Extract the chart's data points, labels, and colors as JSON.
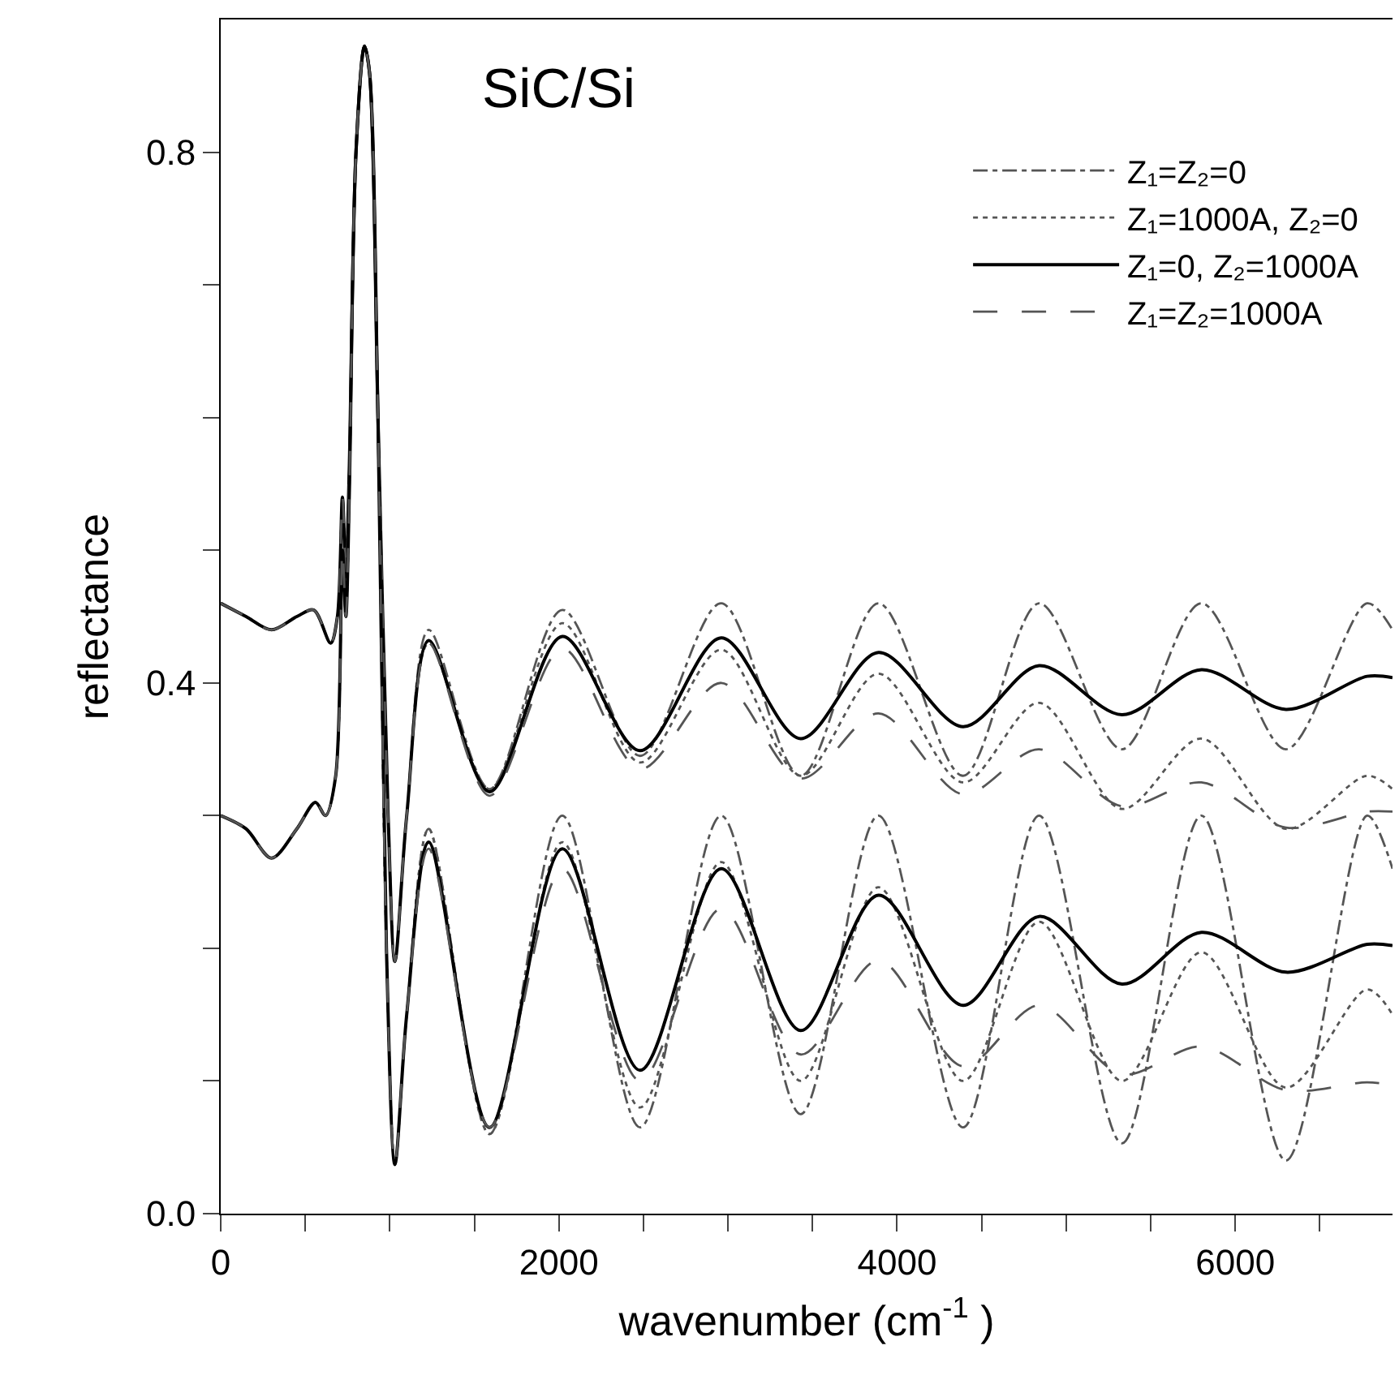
{
  "chart_data": {
    "type": "line",
    "xlabel": "wavenumber (cm$^{-1}$ )",
    "ylabel": "reflectance",
    "annotations": [
      "SiC/Si"
    ],
    "xlim": [
      0,
      6930
    ],
    "xticks": [
      0,
      {
        "value": 500,
        "label": null
      },
      {
        "value": 1000,
        "label": null
      },
      {
        "value": 1500,
        "label": null
      },
      2000,
      {
        "value": 2500,
        "label": null
      },
      {
        "value": 3000,
        "label": null
      },
      {
        "value": 3500,
        "label": null
      },
      4000,
      {
        "value": 4500,
        "label": null
      },
      {
        "value": 5000,
        "label": null
      },
      {
        "value": 5500,
        "label": null
      },
      6000,
      {
        "value": 6500,
        "label": null
      }
    ],
    "ylim": [
      0,
      0.9
    ],
    "yticks": [
      {
        "value": 0,
        "label": "0.0"
      },
      {
        "value": 0.1,
        "label": null
      },
      {
        "value": 0.2,
        "label": null
      },
      {
        "value": 0.3,
        "label": null
      },
      {
        "value": 0.4,
        "label": "0.4"
      },
      {
        "value": 0.5,
        "label": null
      },
      {
        "value": 0.6,
        "label": null
      },
      {
        "value": 0.7,
        "label": null
      },
      {
        "value": 0.8,
        "label": "0.8"
      }
    ],
    "legend": "top right",
    "series": [
      {
        "name": "Z₁=Z₂=0",
        "color": "#555555",
        "line_style": "dashdot",
        "x": [
          0,
          150,
          300,
          450,
          550,
          650,
          690,
          720,
          740,
          760,
          800,
          850,
          880,
          930,
          990,
          1030,
          1100,
          1230,
          1590,
          2020,
          2480,
          2960,
          3430,
          3890,
          4390,
          4840,
          5330,
          5800,
          6300,
          6780,
          6930
        ],
        "values": [
          0.46,
          0.45,
          0.44,
          0.45,
          0.455,
          0.43,
          0.45,
          0.54,
          0.48,
          0.56,
          0.8,
          0.88,
          0.86,
          0.6,
          0.3,
          0.19,
          0.3,
          0.44,
          0.32,
          0.455,
          0.345,
          0.46,
          0.33,
          0.46,
          0.33,
          0.46,
          0.35,
          0.46,
          0.35,
          0.46,
          0.44
        ]
      },
      {
        "name": "Z₁=1000A, Z₂=0",
        "color": "#555555",
        "line_style": "dotted",
        "x": [
          0,
          150,
          300,
          450,
          550,
          650,
          690,
          720,
          740,
          760,
          800,
          850,
          880,
          930,
          990,
          1030,
          1100,
          1230,
          1590,
          2020,
          2480,
          2960,
          3430,
          3890,
          4390,
          4840,
          5330,
          5800,
          6300,
          6780,
          6930
        ],
        "values": [
          0.46,
          0.45,
          0.44,
          0.45,
          0.455,
          0.43,
          0.45,
          0.54,
          0.48,
          0.56,
          0.8,
          0.88,
          0.86,
          0.6,
          0.3,
          0.19,
          0.3,
          0.43,
          0.32,
          0.445,
          0.34,
          0.425,
          0.33,
          0.407,
          0.325,
          0.385,
          0.305,
          0.358,
          0.29,
          0.33,
          0.32
        ]
      },
      {
        "name": "Z₁=0, Z₂=1000A",
        "color": "#000000",
        "line_style": "solid",
        "x": [
          0,
          150,
          300,
          450,
          550,
          650,
          690,
          720,
          740,
          760,
          800,
          850,
          880,
          930,
          990,
          1030,
          1100,
          1230,
          1590,
          2020,
          2480,
          2960,
          3430,
          3890,
          4390,
          4840,
          5330,
          5800,
          6300,
          6780,
          6930
        ],
        "values": [
          0.46,
          0.45,
          0.44,
          0.45,
          0.455,
          0.43,
          0.45,
          0.54,
          0.48,
          0.56,
          0.8,
          0.88,
          0.86,
          0.6,
          0.3,
          0.19,
          0.3,
          0.432,
          0.318,
          0.435,
          0.349,
          0.434,
          0.358,
          0.423,
          0.367,
          0.413,
          0.376,
          0.41,
          0.38,
          0.405,
          0.404
        ]
      },
      {
        "name": "Z₁=Z₂=1000A",
        "color": "#555555",
        "line_style": "dashed",
        "x": [
          0,
          150,
          300,
          450,
          550,
          650,
          690,
          720,
          740,
          760,
          800,
          850,
          880,
          930,
          990,
          1030,
          1100,
          1230,
          1590,
          2020,
          2480,
          2960,
          3430,
          3890,
          4390,
          4840,
          5330,
          5800,
          6300,
          6780,
          6930
        ],
        "values": [
          0.46,
          0.45,
          0.44,
          0.45,
          0.455,
          0.43,
          0.45,
          0.54,
          0.48,
          0.56,
          0.8,
          0.88,
          0.86,
          0.6,
          0.3,
          0.19,
          0.3,
          0.43,
          0.315,
          0.426,
          0.335,
          0.4,
          0.328,
          0.377,
          0.316,
          0.35,
          0.307,
          0.325,
          0.291,
          0.303,
          0.303
        ]
      },
      {
        "color": "#555555",
        "line_style": "dashdot",
        "x": [
          0,
          150,
          300,
          450,
          560,
          620,
          680,
          720,
          740,
          760,
          800,
          850,
          880,
          930,
          980,
          1030,
          1100,
          1230,
          1590,
          2020,
          2480,
          2960,
          3430,
          3890,
          4390,
          4840,
          5330,
          5800,
          6300,
          6780,
          6930
        ],
        "values": [
          0.3,
          0.29,
          0.268,
          0.29,
          0.31,
          0.3,
          0.33,
          0.5,
          0.45,
          0.54,
          0.8,
          0.88,
          0.86,
          0.6,
          0.2,
          0.037,
          0.15,
          0.29,
          0.06,
          0.3,
          0.065,
          0.3,
          0.075,
          0.3,
          0.065,
          0.3,
          0.053,
          0.3,
          0.04,
          0.3,
          0.26
        ]
      },
      {
        "color": "#555555",
        "line_style": "dotted",
        "x": [
          0,
          150,
          300,
          450,
          560,
          620,
          680,
          720,
          740,
          760,
          800,
          850,
          880,
          930,
          980,
          1030,
          1100,
          1230,
          1590,
          2020,
          2480,
          2960,
          3430,
          3890,
          4390,
          4840,
          5330,
          5800,
          6300,
          6780,
          6930
        ],
        "values": [
          0.3,
          0.29,
          0.268,
          0.29,
          0.31,
          0.3,
          0.33,
          0.5,
          0.45,
          0.54,
          0.8,
          0.88,
          0.86,
          0.6,
          0.2,
          0.037,
          0.15,
          0.29,
          0.06,
          0.28,
          0.08,
          0.265,
          0.1,
          0.246,
          0.1,
          0.22,
          0.1,
          0.197,
          0.095,
          0.169,
          0.15
        ]
      },
      {
        "color": "#000000",
        "line_style": "solid",
        "x": [
          0,
          150,
          300,
          450,
          560,
          620,
          680,
          720,
          740,
          760,
          800,
          850,
          880,
          930,
          980,
          1030,
          1100,
          1230,
          1590,
          2020,
          2480,
          2960,
          3430,
          3890,
          4390,
          4840,
          5330,
          5800,
          6300,
          6780,
          6930
        ],
        "values": [
          0.3,
          0.29,
          0.268,
          0.29,
          0.31,
          0.3,
          0.33,
          0.5,
          0.45,
          0.54,
          0.8,
          0.88,
          0.86,
          0.6,
          0.2,
          0.037,
          0.15,
          0.28,
          0.065,
          0.275,
          0.108,
          0.26,
          0.138,
          0.24,
          0.157,
          0.224,
          0.173,
          0.212,
          0.182,
          0.203,
          0.202
        ]
      },
      {
        "color": "#555555",
        "line_style": "dashed",
        "x": [
          0,
          150,
          300,
          450,
          560,
          620,
          680,
          720,
          740,
          760,
          800,
          850,
          880,
          930,
          980,
          1030,
          1100,
          1230,
          1590,
          2020,
          2480,
          2960,
          3430,
          3890,
          4390,
          4840,
          5330,
          5800,
          6300,
          6780,
          6930
        ],
        "values": [
          0.3,
          0.29,
          0.268,
          0.29,
          0.31,
          0.3,
          0.33,
          0.5,
          0.45,
          0.54,
          0.8,
          0.88,
          0.86,
          0.6,
          0.2,
          0.037,
          0.15,
          0.275,
          0.065,
          0.26,
          0.1,
          0.23,
          0.12,
          0.191,
          0.111,
          0.157,
          0.105,
          0.126,
          0.093,
          0.099,
          0.097
        ]
      }
    ]
  }
}
